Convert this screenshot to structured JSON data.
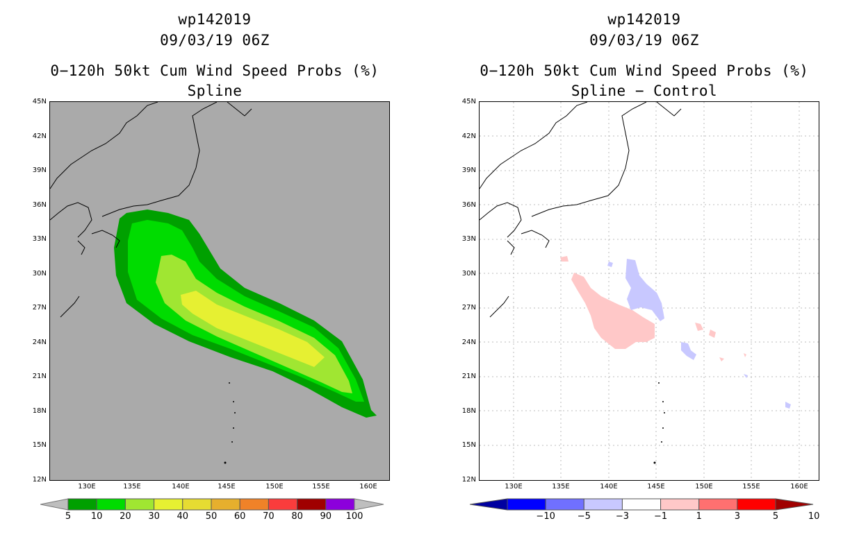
{
  "left_panel": {
    "title1": "wp142019",
    "title2": "09/03/19 06Z",
    "title3": "0−120h 50kt Cum Wind Speed Probs (%)",
    "title4": "Spline",
    "colorbar": {
      "labels": [
        "5",
        "10",
        "20",
        "30",
        "40",
        "50",
        "60",
        "70",
        "80",
        "90",
        "100"
      ],
      "colors": [
        "#00a000",
        "#00dc00",
        "#a0e632",
        "#e6f032",
        "#e6dc32",
        "#e6af2d",
        "#f08228",
        "#fa3c3c",
        "#a00000",
        "#8c00dc",
        "#bebebe"
      ]
    }
  },
  "right_panel": {
    "title1": "wp142019",
    "title2": "09/03/19 06Z",
    "title3": "0−120h 50kt Cum Wind Speed Probs (%)",
    "title4": "Spline − Control",
    "colorbar": {
      "labels": [
        "−10",
        "−5",
        "−3",
        "−1",
        "1",
        "3",
        "5",
        "10"
      ],
      "colors": [
        "#0000a0",
        "#0000ff",
        "#7070ff",
        "#c8c8ff",
        "#ffffff",
        "#ffc8c8",
        "#ff7070",
        "#ff0000",
        "#a00000"
      ]
    }
  },
  "lat_labels": [
    "45N",
    "42N",
    "39N",
    "36N",
    "33N",
    "30N",
    "27N",
    "24N",
    "21N",
    "18N",
    "15N",
    "12N"
  ],
  "lon_labels": [
    "130E",
    "135E",
    "140E",
    "145E",
    "150E",
    "155E",
    "160E"
  ],
  "colors": {
    "ocean_left": "#aaaaaa",
    "ocean_right": "#ffffff",
    "coast": "#000000"
  }
}
